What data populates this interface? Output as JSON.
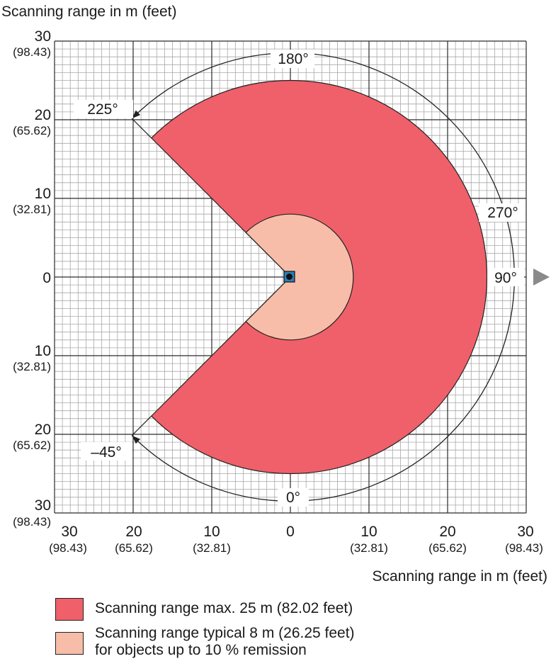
{
  "axis": {
    "y_title": "Scanning range in m (feet)",
    "x_title": "Scanning range in m (feet)",
    "y_ticks": [
      {
        "m": "30",
        "ft": "(98.43)"
      },
      {
        "m": "20",
        "ft": "(65.62)"
      },
      {
        "m": "10",
        "ft": "(32.81)"
      },
      {
        "m": "0",
        "ft": ""
      },
      {
        "m": "10",
        "ft": "(32.81)"
      },
      {
        "m": "20",
        "ft": "(65.62)"
      },
      {
        "m": "30",
        "ft": "(98.43)"
      }
    ],
    "x_ticks": [
      {
        "m": "30",
        "ft": "(98.43)"
      },
      {
        "m": "20",
        "ft": "(65.62)"
      },
      {
        "m": "10",
        "ft": "(32.81)"
      },
      {
        "m": "0",
        "ft": ""
      },
      {
        "m": "10",
        "ft": "(32.81)"
      },
      {
        "m": "20",
        "ft": "(65.62)"
      },
      {
        "m": "30",
        "ft": "(98.43)"
      }
    ],
    "range_m": [
      -30,
      30
    ],
    "major_grid_m": 10,
    "minor_grid_m": 1
  },
  "angle_labels": {
    "a180": "180°",
    "a225": "225°",
    "a270": "270°",
    "a90": "90°",
    "a0": "0°",
    "am45": "–45°"
  },
  "fields": {
    "max_range_m": 25,
    "typical_range_m": 8,
    "scan_start_deg": -45,
    "scan_end_deg": 225
  },
  "legend": {
    "max": "Scanning range max. 25 m (82.02 feet)",
    "typical_line1": "Scanning range typical 8 m (26.25 feet)",
    "typical_line2": "for objects up to 10 % remission"
  },
  "colors": {
    "max_field": "#f0606a",
    "typical_field": "#f8bda8",
    "grid": "#8a8a8a",
    "sensor": "#2a7fb8"
  }
}
